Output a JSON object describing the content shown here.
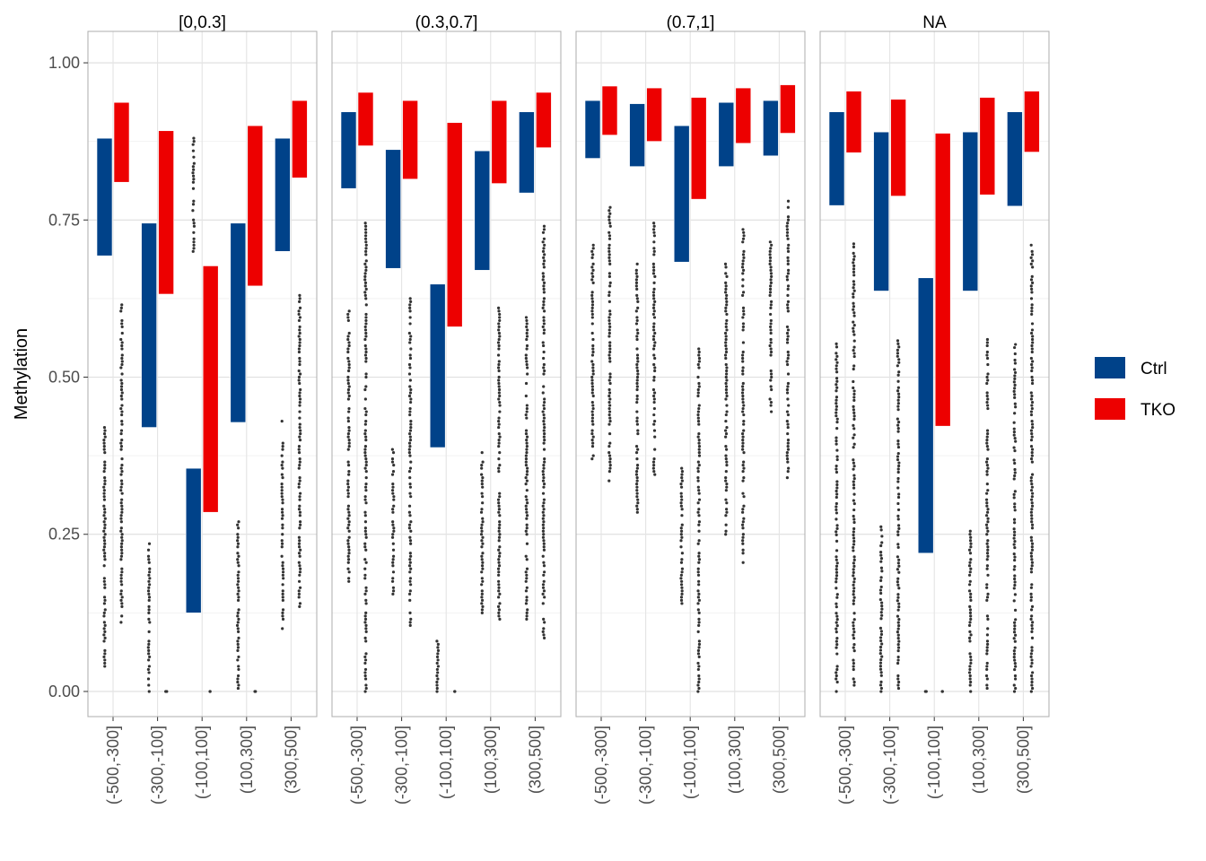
{
  "chart_data": {
    "type": "box",
    "ylabel": "Methylation",
    "ylim": [
      -0.04,
      1.05
    ],
    "y_ticks": [
      0,
      0.25,
      0.5,
      0.75,
      1
    ],
    "y_tick_labels": [
      "0.00",
      "0.25",
      "0.50",
      "0.75",
      "1.00"
    ],
    "categories": [
      "(-500,-300]",
      "(-300,-100]",
      "(-100,100]",
      "(100,300]",
      "(300,500]"
    ],
    "legend": {
      "position": "right",
      "entries": [
        {
          "name": "Ctrl",
          "color": "#004289"
        },
        {
          "name": "TKO",
          "color": "#ED0000"
        }
      ]
    },
    "panels": [
      {
        "title": "[0,0.3]",
        "boxes": {
          "Ctrl": [
            [
              0.693,
              0.88
            ],
            [
              0.42,
              0.745
            ],
            [
              0.125,
              0.355
            ],
            [
              0.428,
              0.745
            ],
            [
              0.7,
              0.88
            ]
          ],
          "TKO": [
            [
              0.81,
              0.937
            ],
            [
              0.632,
              0.892
            ],
            [
              0.285,
              0.677
            ],
            [
              0.645,
              0.9
            ],
            [
              0.817,
              0.94
            ]
          ]
        },
        "outliers": {
          "Ctrl": [
            [
              0.04,
              0.42
            ],
            [
              0.0,
              0.24
            ],
            [
              0.7,
              0.88
            ],
            [
              0.0,
              0.27
            ],
            [
              0.1,
              0.43
            ]
          ],
          "TKO": [
            [
              0.11,
              0.62
            ],
            [
              0.0,
              0.0
            ],
            [
              0.0,
              0.0
            ],
            [
              0.0,
              0.0
            ],
            [
              0.135,
              0.63
            ]
          ]
        }
      },
      {
        "title": "(0.3,0.7]",
        "boxes": {
          "Ctrl": [
            [
              0.8,
              0.922
            ],
            [
              0.673,
              0.862
            ],
            [
              0.388,
              0.648
            ],
            [
              0.67,
              0.86
            ],
            [
              0.793,
              0.922
            ]
          ],
          "TKO": [
            [
              0.868,
              0.953
            ],
            [
              0.815,
              0.94
            ],
            [
              0.58,
              0.905
            ],
            [
              0.808,
              0.94
            ],
            [
              0.865,
              0.953
            ]
          ]
        },
        "outliers": {
          "Ctrl": [
            [
              0.175,
              0.61
            ],
            [
              0.155,
              0.39
            ],
            [
              0.0,
              0.08
            ],
            [
              0.125,
              0.38
            ],
            [
              0.11,
              0.6
            ]
          ],
          "TKO": [
            [
              0.0,
              0.745
            ],
            [
              0.105,
              0.63
            ],
            [
              0.0,
              0.0
            ],
            [
              0.115,
              0.61
            ],
            [
              0.085,
              0.74
            ]
          ]
        }
      },
      {
        "title": "(0.7,1]",
        "boxes": {
          "Ctrl": [
            [
              0.848,
              0.94
            ],
            [
              0.835,
              0.935
            ],
            [
              0.683,
              0.9
            ],
            [
              0.835,
              0.937
            ],
            [
              0.852,
              0.94
            ]
          ],
          "TKO": [
            [
              0.885,
              0.963
            ],
            [
              0.875,
              0.96
            ],
            [
              0.783,
              0.945
            ],
            [
              0.872,
              0.96
            ],
            [
              0.888,
              0.965
            ]
          ]
        },
        "outliers": {
          "Ctrl": [
            [
              0.37,
              0.71
            ],
            [
              0.285,
              0.68
            ],
            [
              0.14,
              0.355
            ],
            [
              0.245,
              0.68
            ],
            [
              0.445,
              0.715
            ]
          ],
          "TKO": [
            [
              0.335,
              0.77
            ],
            [
              0.345,
              0.745
            ],
            [
              0.0,
              0.545
            ],
            [
              0.2,
              0.745
            ],
            [
              0.335,
              0.78
            ]
          ]
        }
      },
      {
        "title": "NA",
        "boxes": {
          "Ctrl": [
            [
              0.773,
              0.922
            ],
            [
              0.637,
              0.89
            ],
            [
              0.22,
              0.658
            ],
            [
              0.637,
              0.89
            ],
            [
              0.772,
              0.922
            ]
          ],
          "TKO": [
            [
              0.857,
              0.955
            ],
            [
              0.788,
              0.942
            ],
            [
              0.422,
              0.888
            ],
            [
              0.79,
              0.945
            ],
            [
              0.858,
              0.955
            ]
          ]
        },
        "outliers": {
          "Ctrl": [
            [
              0.0,
              0.553
            ],
            [
              0.0,
              0.262
            ],
            [
              0.0,
              0.0
            ],
            [
              0.0,
              0.26
            ],
            [
              0.0,
              0.552
            ]
          ],
          "TKO": [
            [
              0.0,
              0.712
            ],
            [
              0.0,
              0.558
            ],
            [
              0.0,
              0.0
            ],
            [
              0.0,
              0.56
            ],
            [
              0.0,
              0.715
            ]
          ]
        }
      }
    ]
  }
}
